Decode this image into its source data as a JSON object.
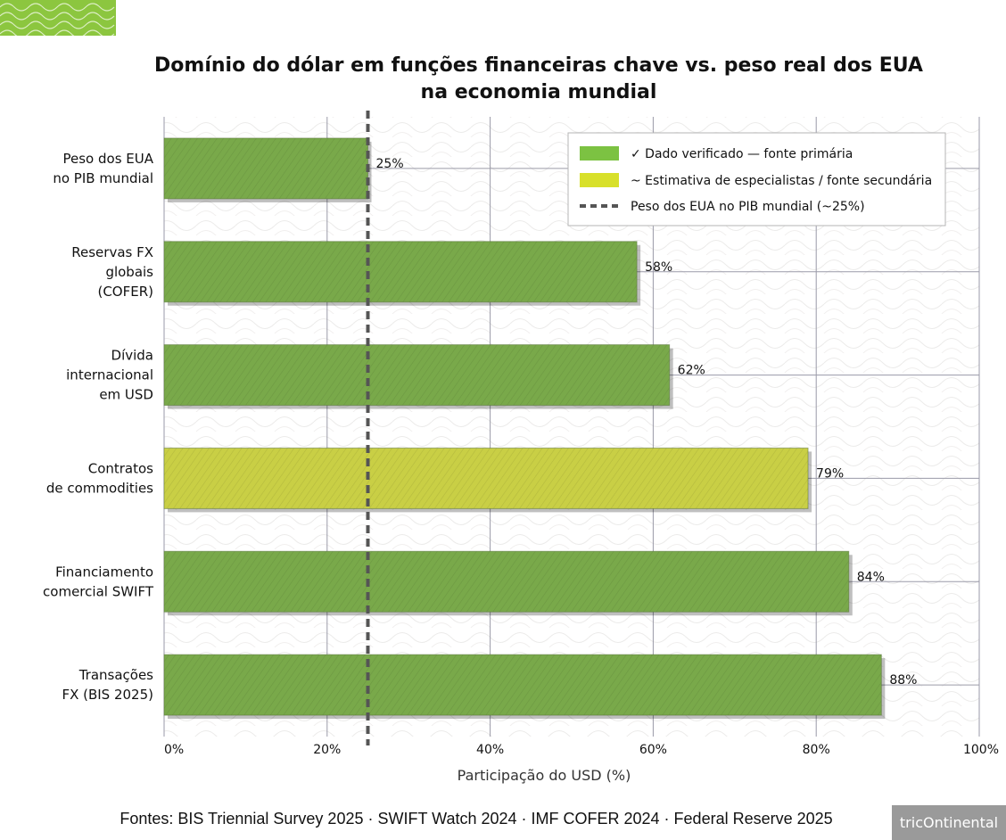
{
  "chart_data": {
    "type": "bar",
    "orientation": "horizontal",
    "title_lines": [
      "Domínio do dólar em funções financeiras chave vs. peso real dos EUA",
      "na economia mundial"
    ],
    "xlabel": "Participação do USD (%)",
    "xlim": [
      0,
      100
    ],
    "x_ticks": [
      "0%",
      "20%",
      "40%",
      "60%",
      "80%",
      "100%"
    ],
    "x_tick_values": [
      0,
      20,
      40,
      60,
      80,
      100
    ],
    "categories": [
      [
        "Peso dos EUA",
        "no PIB mundial"
      ],
      [
        "Reservas FX",
        "globais",
        "(COFER)"
      ],
      [
        "Dívida",
        "internacional",
        "em USD"
      ],
      [
        "Contratos",
        "de commodities"
      ],
      [
        "Financiamento",
        "comercial SWIFT"
      ],
      [
        "Transações",
        "FX (BIS 2025)"
      ]
    ],
    "values": [
      25,
      58,
      62,
      79,
      84,
      88
    ],
    "value_labels": [
      "25%",
      "58%",
      "62%",
      "79%",
      "84%",
      "88%"
    ],
    "status": [
      "verified",
      "verified",
      "verified",
      "estimate",
      "verified",
      "verified"
    ],
    "reference_line": {
      "value": 25,
      "style": "dashed"
    },
    "legend": {
      "placement": "top-right",
      "entries": [
        {
          "label": "✓ Dado verificado — fonte primária",
          "color": "#7cc242",
          "kind": "patch"
        },
        {
          "label": "~ Estimativa de especialistas / fonte secundária",
          "color": "#d8e02a",
          "kind": "patch"
        },
        {
          "label": "Peso dos EUA no PIB mundial (~25%)",
          "color": "#555555",
          "kind": "dashed-line"
        }
      ]
    },
    "grid": true,
    "colors": {
      "verified": "#79a94a",
      "estimate": "#c9cf45",
      "reference": "#555555"
    }
  },
  "footer": {
    "sources": "Fontes: BIS Triennial Survey 2025 · SWIFT Watch 2024 · IMF COFER 2024 · Federal Reserve 2025",
    "logo_text": "tricOntinental"
  }
}
